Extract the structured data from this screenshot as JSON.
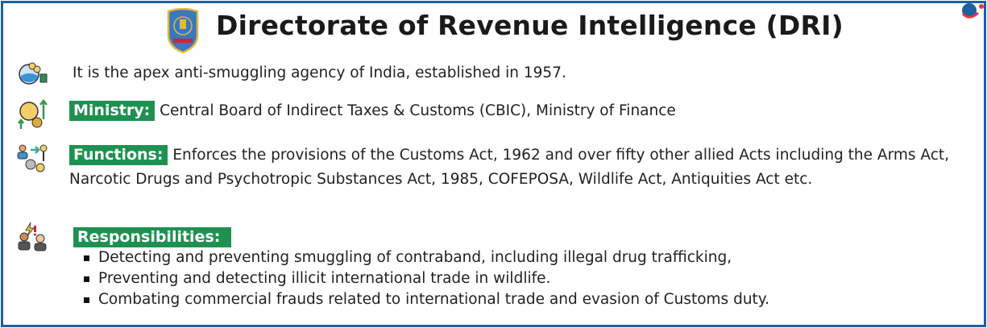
{
  "header": {
    "title": "Directorate of Revenue Intelligence (DRI)",
    "emblem_icon": "dri-emblem",
    "brand_logo": "brand-logo"
  },
  "rows": {
    "intro": {
      "icon": "lab-flask-icon",
      "text": "It is the apex anti-smuggling agency of India, established in 1957."
    },
    "ministry": {
      "icon": "finance-gears-icon",
      "label": "Ministry:",
      "text": "Central Board of Indirect Taxes & Customs (CBIC), Ministry of Finance"
    },
    "functions": {
      "icon": "people-key-gears-icon",
      "label": "Functions:",
      "text": "Enforces the provisions of the Customs Act, 1962 and over fifty other allied Acts including the Arms Act, Narcotic Drugs and Psychotropic Substances Act, 1985, COFEPOSA, Wildlife Act, Antiquities Act etc."
    },
    "responsibilities": {
      "icon": "officers-alert-icon",
      "label": "Responsibilities:",
      "items": [
        "Detecting and preventing smuggling of contraband, including illegal drug trafficking,",
        "Preventing and detecting illicit international trade in wildlife.",
        "Combating commercial frauds related to international trade and evasion of Customs duty."
      ]
    }
  },
  "colors": {
    "border": "#1f5fa0",
    "label_bg": "#1e9150",
    "label_text": "#ffffff"
  }
}
